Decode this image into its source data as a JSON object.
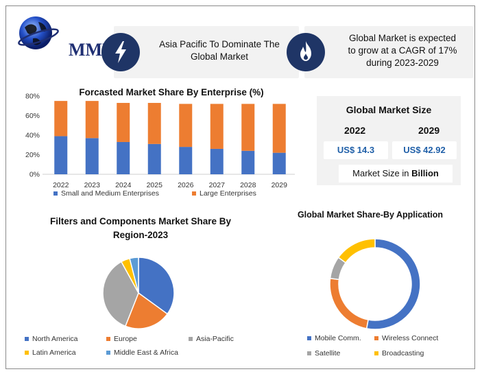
{
  "brand": {
    "logo_text": "MMR"
  },
  "cards": [
    {
      "icon": "lightning-icon",
      "text_lines": [
        "Asia Pacific To Dominate The",
        "Global Market"
      ]
    },
    {
      "icon": "flame-icon",
      "text_lines": [
        "Global Market is expected",
        "to grow at a CAGR of 17%",
        "during 2023-2029"
      ]
    }
  ],
  "market_size": {
    "title": "Global Market Size",
    "years": [
      "2022",
      "2029"
    ],
    "values": [
      "US$ 14.3",
      "US$ 42.92"
    ],
    "footer_prefix": "Market Size in ",
    "footer_bold": "Billion"
  },
  "colors": {
    "blue": "#4472c4",
    "orange": "#ed7d31",
    "gray": "#a5a5a5",
    "yellow": "#ffc000",
    "lightblue": "#5b9bd5",
    "navy": "#1f3566"
  },
  "chart_data": [
    {
      "type": "bar",
      "title": "Forcasted Market Share By Enterprise (%)",
      "stacked": true,
      "categories": [
        "2022",
        "2023",
        "2024",
        "2025",
        "2026",
        "2027",
        "2028",
        "2029"
      ],
      "series": [
        {
          "name": "Small and Medium Enterprises",
          "values": [
            39,
            37,
            33,
            31,
            28,
            26,
            24,
            22
          ],
          "color": "#4472c4"
        },
        {
          "name": "Large Enterprises",
          "values": [
            36,
            38,
            40,
            42,
            44,
            46,
            48,
            50
          ],
          "color": "#ed7d31"
        }
      ],
      "ylim": [
        0,
        80
      ],
      "yticks": [
        "0%",
        "20%",
        "40%",
        "60%",
        "80%"
      ],
      "legend": "bottom"
    },
    {
      "type": "pie",
      "title_lines": [
        "Filters and Components Market Share By",
        "Region-2023"
      ],
      "labels": [
        "North America",
        "Europe",
        "Asia-Pacific",
        "Latin America",
        "Middle East & Africa"
      ],
      "values": [
        35,
        21,
        36,
        4,
        4
      ],
      "colors": [
        "#4472c4",
        "#ed7d31",
        "#a5a5a5",
        "#ffc000",
        "#5b9bd5"
      ],
      "legend": "bottom"
    },
    {
      "type": "pie",
      "donut": true,
      "title": "Global Market Share-By Application",
      "labels": [
        "Mobile Comm.",
        "Wireless Connect",
        "Satellite",
        "Broadcasting"
      ],
      "values": [
        53,
        24,
        8,
        15
      ],
      "colors": [
        "#4472c4",
        "#ed7d31",
        "#a5a5a5",
        "#ffc000"
      ],
      "legend": "bottom"
    }
  ]
}
